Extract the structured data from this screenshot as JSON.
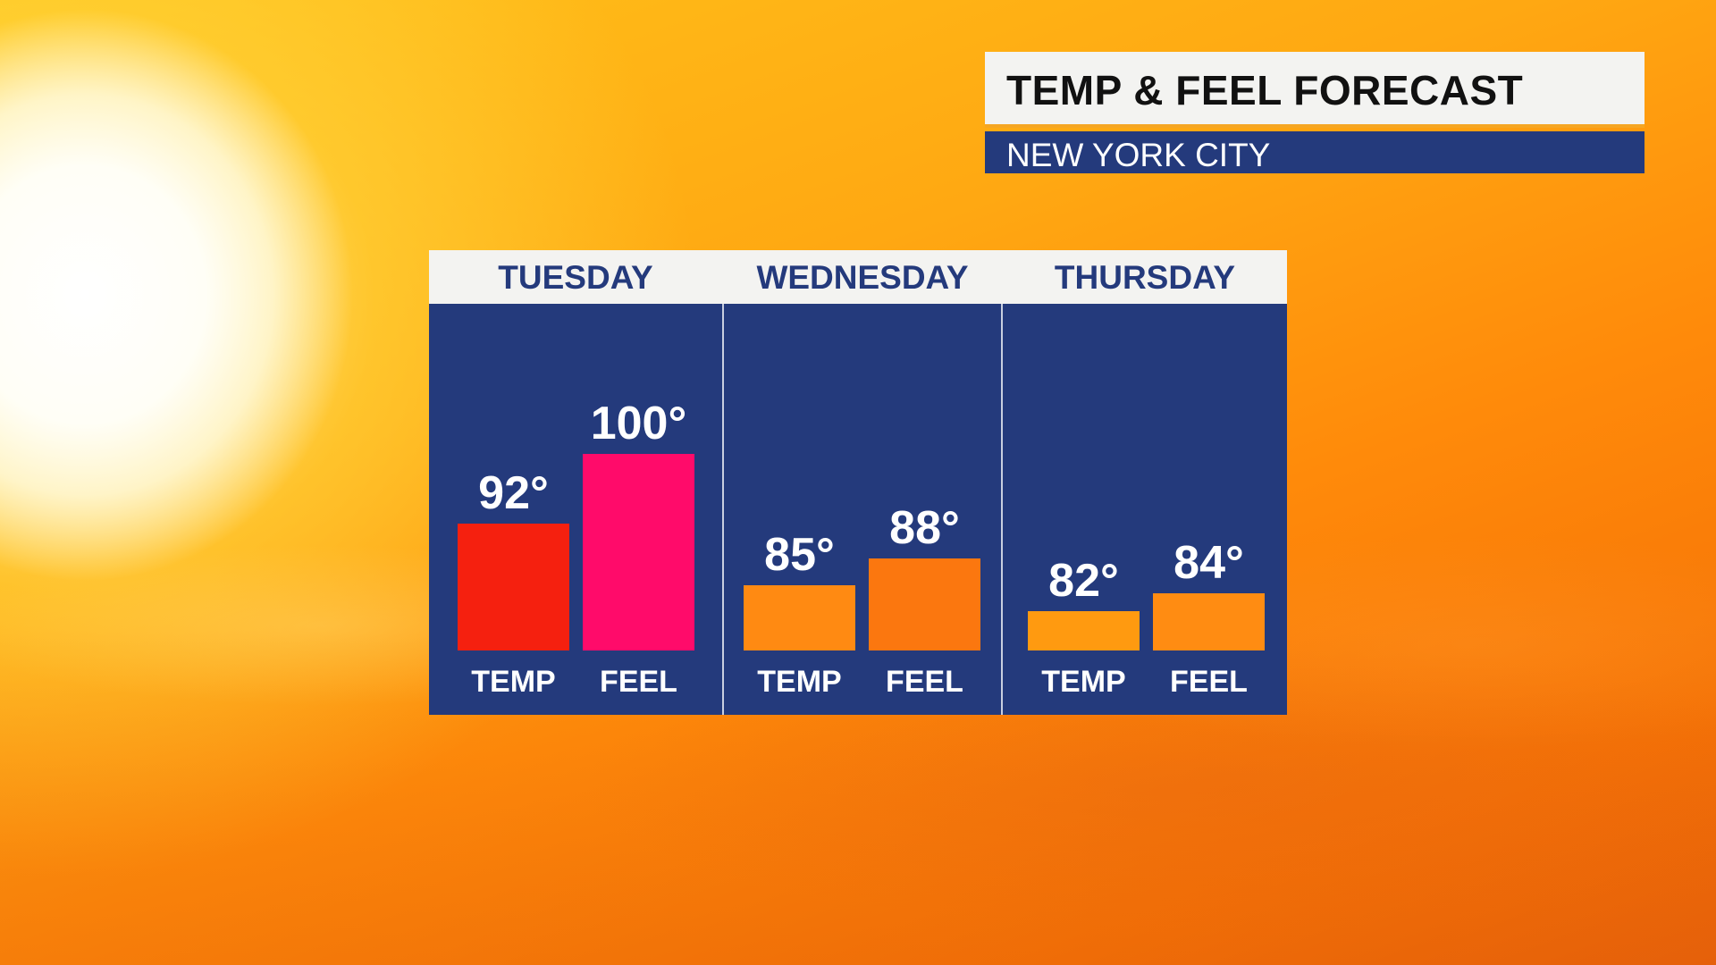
{
  "title": "TEMP & FEEL FORECAST",
  "subtitle": "NEW YORK CITY",
  "chart_data": {
    "type": "bar",
    "title": "TEMP & FEEL FORECAST",
    "subtitle": "NEW YORK CITY",
    "categories": [
      "TUESDAY",
      "WEDNESDAY",
      "THURSDAY"
    ],
    "series_labels": [
      "TEMP",
      "FEEL"
    ],
    "groups": [
      {
        "day": "TUESDAY",
        "bars": [
          {
            "label": "TEMP",
            "value": 92,
            "value_text": "92°",
            "color": "#f5200f"
          },
          {
            "label": "FEEL",
            "value": 100,
            "value_text": "100°",
            "color": "#ff0b6a"
          }
        ]
      },
      {
        "day": "WEDNESDAY",
        "bars": [
          {
            "label": "TEMP",
            "value": 85,
            "value_text": "85°",
            "color": "#ff8a12"
          },
          {
            "label": "FEEL",
            "value": 88,
            "value_text": "88°",
            "color": "#fb770f"
          }
        ]
      },
      {
        "day": "THURSDAY",
        "bars": [
          {
            "label": "TEMP",
            "value": 82,
            "value_text": "82°",
            "color": "#ff9a10"
          },
          {
            "label": "FEEL",
            "value": 84,
            "value_text": "84°",
            "color": "#ff8c12"
          }
        ]
      }
    ],
    "ylim": [
      77.5,
      100
    ],
    "grid": false,
    "legend": "none"
  },
  "colors": {
    "panel_blue": "#243a7c",
    "header_gray": "#f3f3f1",
    "accent_orange": "#f5a623"
  }
}
